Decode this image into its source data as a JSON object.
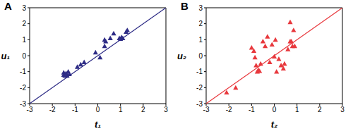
{
  "chart_data": [
    {
      "type": "scatter",
      "title": "A",
      "x_label": "t₁",
      "y_label": "u₁",
      "xlim": [
        -3,
        3
      ],
      "ylim": [
        -3,
        3
      ],
      "xticks": [
        -3,
        -2,
        -1,
        0,
        1,
        2,
        3
      ],
      "yticks": [
        -3,
        -2,
        -1,
        0,
        1,
        2,
        3
      ],
      "series": [
        {
          "type": "scatter",
          "marker": "triangle",
          "color": "#2e2c86",
          "x": [
            -1.5,
            -1.5,
            -1.45,
            -1.4,
            -1.35,
            -1.3,
            -1.25,
            -0.9,
            -0.75,
            -0.6,
            -0.1,
            0.1,
            0.3,
            0.35,
            0.55,
            0.7,
            0.95,
            1.0,
            1.05,
            1.1,
            1.25,
            1.3,
            0.3
          ],
          "y": [
            -1.05,
            -1.2,
            -1.25,
            -1.1,
            -1.25,
            -1.0,
            -1.15,
            -0.7,
            -0.55,
            -0.4,
            0.2,
            -0.1,
            0.6,
            0.9,
            1.1,
            1.4,
            1.1,
            1.05,
            1.15,
            1.1,
            1.5,
            1.6,
            1.0
          ]
        },
        {
          "type": "line",
          "color": "#2e2c86",
          "x": [
            -3,
            3
          ],
          "y": [
            -3,
            3
          ]
        }
      ]
    },
    {
      "type": "scatter",
      "title": "B",
      "x_label": "t₂",
      "y_label": "u₂",
      "xlim": [
        -3,
        3
      ],
      "ylim": [
        -3,
        3
      ],
      "xticks": [
        -3,
        -2,
        -1,
        0,
        1,
        2,
        3
      ],
      "yticks": [
        -3,
        -2,
        -1,
        0,
        1,
        2,
        3
      ],
      "series": [
        {
          "type": "scatter",
          "marker": "triangle",
          "color": "#e8383d",
          "x": [
            -2.1,
            -1.7,
            -1.0,
            -0.9,
            -0.85,
            -0.8,
            -0.75,
            -0.7,
            -0.65,
            -0.6,
            -0.5,
            -0.4,
            -0.3,
            -0.2,
            -0.1,
            0.0,
            0.05,
            0.1,
            0.2,
            0.3,
            0.4,
            0.45,
            0.6,
            0.7,
            0.75,
            0.8,
            0.85,
            0.9,
            0.7
          ],
          "y": [
            -2.3,
            -2.0,
            0.5,
            0.3,
            -0.1,
            -0.6,
            -1.0,
            -0.9,
            -0.95,
            -0.5,
            0.9,
            0.6,
            1.2,
            -0.4,
            0.7,
            -0.05,
            1.0,
            -1.0,
            -0.2,
            -0.6,
            -0.8,
            -0.5,
            0.4,
            2.1,
            0.9,
            0.6,
            1.6,
            0.6,
            0.9
          ]
        },
        {
          "type": "line",
          "color": "#e8383d",
          "x": [
            -3,
            3
          ],
          "y": [
            -3,
            3
          ]
        }
      ]
    }
  ]
}
